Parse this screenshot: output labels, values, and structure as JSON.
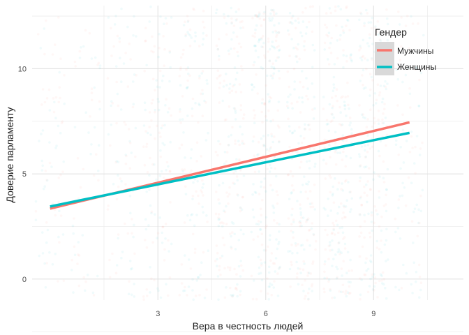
{
  "chart_data": {
    "type": "scatter",
    "xlabel": "Вера в честность людей",
    "ylabel": "Доверие парламенту",
    "xlim": [
      -0.5,
      11.5
    ],
    "ylim": [
      -1.0,
      13.0
    ],
    "x_ticks": [
      3,
      6,
      9
    ],
    "y_ticks": [
      0,
      5,
      10
    ],
    "grid": true,
    "legend": {
      "title": "Гендер",
      "position": "top-right",
      "entries": [
        "Мужчины",
        "Женщины"
      ]
    },
    "series": [
      {
        "name": "Мужчины",
        "color": "#F8766D",
        "fit_line": {
          "x": [
            0,
            10
          ],
          "y": [
            3.35,
            7.45
          ]
        }
      },
      {
        "name": "Женщины",
        "color": "#00BFC4",
        "fit_line": {
          "x": [
            0,
            10
          ],
          "y": [
            3.45,
            6.95
          ]
        }
      }
    ],
    "points": {
      "x_values": [
        0,
        1,
        2,
        3,
        4,
        5,
        6,
        7,
        8,
        9,
        10
      ],
      "y_range": [
        0,
        10
      ],
      "jitter": true,
      "alpha": "low",
      "density_by_x": [
        0.3,
        0.22,
        0.35,
        0.5,
        0.55,
        0.75,
        0.95,
        0.8,
        0.9,
        0.85,
        0.35
      ],
      "spread_y": [
        [
          -0.5,
          12.5
        ],
        [
          -1,
          13
        ],
        [
          -1,
          13
        ],
        [
          -1,
          13
        ],
        [
          -1,
          13
        ],
        [
          -1,
          13
        ],
        [
          -1,
          13
        ],
        [
          -1,
          13
        ],
        [
          -1,
          13
        ],
        [
          -1,
          13
        ],
        [
          -1,
          13
        ]
      ]
    }
  }
}
